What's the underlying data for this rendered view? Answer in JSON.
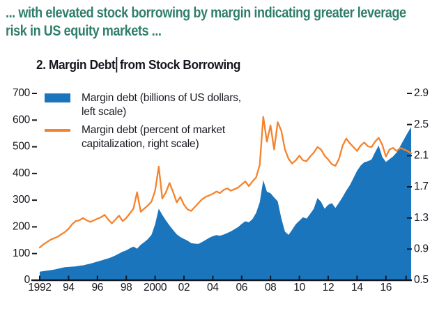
{
  "header": {
    "line1": "... with elevated stock borrowing by margin indicating greater leverage",
    "line2": "risk in US equity markets ..."
  },
  "title": {
    "part1": "2. Margin Debt",
    "part2": "from Stock Borrowing"
  },
  "legend": [
    {
      "label": "Margin debt (billions of US dollars, left scale)",
      "marker": "area-swatch"
    },
    {
      "label": "Margin debt (percent of market capitalization, right scale)",
      "marker": "line-swatch"
    }
  ],
  "colors": {
    "headline_teal": "#2F7E6B",
    "dark_text": "#15151E",
    "blue_series": "#1B75BC",
    "orange_series": "#F5822C",
    "axis_line": "#15151E"
  },
  "chart_data": {
    "type": "area+line",
    "title": "2. Margin Debt from Stock Borrowing",
    "x_start": 1992.0,
    "x_step": 0.25,
    "x_unit": "year (quarterly samples)",
    "xlim": [
      1992.0,
      2017.75
    ],
    "grid": false,
    "legend_position": "top-left",
    "series": [
      {
        "name": "Margin debt (billions of US dollars, left scale)",
        "type": "area",
        "axis": "left",
        "color": "#1B75BC",
        "values": [
          32,
          34,
          36,
          38,
          40,
          43,
          46,
          49,
          50,
          51,
          52,
          54,
          56,
          59,
          62,
          66,
          70,
          74,
          78,
          82,
          87,
          93,
          100,
          107,
          112,
          120,
          126,
          118,
          133,
          143,
          154,
          170,
          210,
          268,
          245,
          224,
          205,
          188,
          172,
          162,
          155,
          148,
          139,
          137,
          136,
          143,
          151,
          159,
          165,
          169,
          167,
          171,
          177,
          183,
          191,
          199,
          211,
          221,
          217,
          229,
          252,
          292,
          375,
          332,
          326,
          310,
          296,
          232,
          182,
          170,
          189,
          210,
          223,
          236,
          231,
          249,
          268,
          308,
          294,
          268,
          283,
          289,
          271,
          291,
          312,
          336,
          356,
          383,
          410,
          430,
          442,
          446,
          452,
          480,
          505,
          462,
          443,
          454,
          464,
          479,
          503,
          528,
          552,
          574
        ]
      },
      {
        "name": "Margin debt (percent of market capitalization, right scale)",
        "type": "line",
        "axis": "right",
        "color": "#F5822C",
        "values": [
          0.92,
          0.96,
          0.99,
          1.02,
          1.04,
          1.06,
          1.09,
          1.12,
          1.16,
          1.22,
          1.26,
          1.27,
          1.3,
          1.27,
          1.25,
          1.27,
          1.29,
          1.31,
          1.34,
          1.28,
          1.23,
          1.28,
          1.33,
          1.26,
          1.3,
          1.36,
          1.42,
          1.63,
          1.38,
          1.42,
          1.46,
          1.51,
          1.65,
          1.96,
          1.55,
          1.63,
          1.75,
          1.63,
          1.5,
          1.57,
          1.47,
          1.41,
          1.39,
          1.44,
          1.49,
          1.54,
          1.57,
          1.59,
          1.61,
          1.64,
          1.62,
          1.66,
          1.68,
          1.65,
          1.67,
          1.69,
          1.73,
          1.77,
          1.71,
          1.77,
          1.82,
          1.98,
          2.6,
          2.28,
          2.49,
          2.18,
          2.53,
          2.42,
          2.18,
          2.06,
          2.0,
          2.04,
          2.1,
          2.04,
          2.03,
          2.09,
          2.14,
          2.21,
          2.18,
          2.1,
          2.05,
          1.99,
          1.97,
          2.06,
          2.23,
          2.32,
          2.26,
          2.21,
          2.16,
          2.23,
          2.27,
          2.22,
          2.21,
          2.28,
          2.33,
          2.24,
          2.09,
          2.18,
          2.2,
          2.16,
          2.2,
          2.18,
          2.16,
          2.13
        ]
      }
    ],
    "left_axis": {
      "range": [
        0,
        700
      ],
      "ticks": [
        0,
        100,
        200,
        300,
        400,
        500,
        600,
        700
      ],
      "tick_labels": [
        "0",
        "100",
        "200",
        "300",
        "400",
        "500",
        "600",
        "700"
      ]
    },
    "right_axis": {
      "range": [
        0.5,
        2.9
      ],
      "ticks": [
        0.5,
        0.9,
        1.3,
        1.7,
        2.1,
        2.5,
        2.9
      ],
      "tick_labels": [
        "0.5",
        "0.9",
        "1.3",
        "1.7",
        "2.1",
        "2.5",
        "2.9"
      ]
    },
    "x_axis": {
      "tick_years": [
        1992,
        1994,
        1996,
        1998,
        2000,
        2002,
        2004,
        2006,
        2008,
        2010,
        2012,
        2014,
        2016,
        2017.4
      ],
      "tick_labels": [
        "1992",
        "94",
        "96",
        "98",
        "2000",
        "02",
        "04",
        "06",
        "08",
        "10",
        "12",
        "14",
        "16",
        ""
      ]
    }
  }
}
